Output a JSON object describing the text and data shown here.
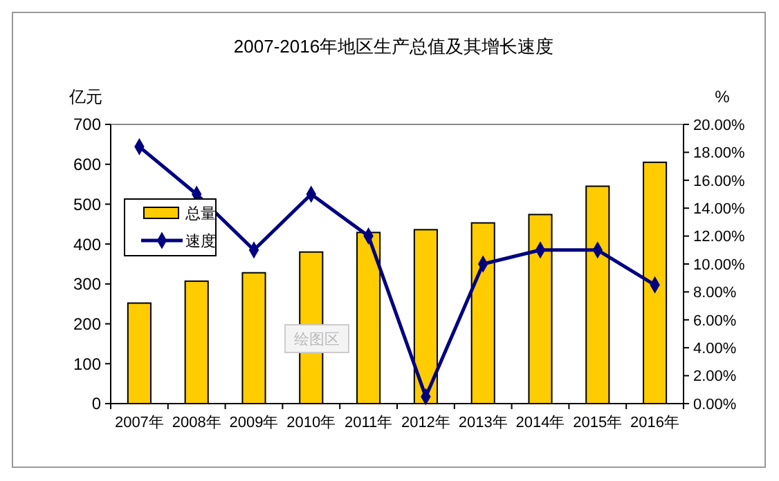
{
  "chart_data": {
    "type": "bar",
    "title": "2007-2016年地区生产总值及其增长速度",
    "ylabel": "亿元",
    "y2label": "%",
    "categories": [
      "2007年",
      "2008年",
      "2009年",
      "2010年",
      "2011年",
      "2012年",
      "2013年",
      "2014年",
      "2015年",
      "2016年"
    ],
    "series": [
      {
        "name": "总量",
        "color": "#ffcc00",
        "values": [
          252,
          307,
          328,
          380,
          429,
          436,
          453,
          474,
          545,
          605
        ]
      },
      {
        "name": "速度",
        "type": "line",
        "axis": "y2",
        "color": "#000080",
        "marker": "diamond",
        "values": [
          18.4,
          15,
          11,
          15,
          12,
          0.5,
          10,
          11,
          11,
          8.5
        ]
      }
    ],
    "ylim": [
      0,
      700
    ],
    "yticks": [
      0,
      100,
      200,
      300,
      400,
      500,
      600,
      700
    ],
    "y2lim": [
      0,
      20
    ],
    "y2ticks": [
      {
        "value": 0,
        "label": "0.00%"
      },
      {
        "value": 2,
        "label": "2.00%"
      },
      {
        "value": 4,
        "label": "4.00%"
      },
      {
        "value": 6,
        "label": "6.00%"
      },
      {
        "value": 8,
        "label": "8.00%"
      },
      {
        "value": 10,
        "label": "10.00%"
      },
      {
        "value": 12,
        "label": "12.00%"
      },
      {
        "value": 14,
        "label": "14.00%"
      },
      {
        "value": 16,
        "label": "16.00%"
      },
      {
        "value": 18,
        "label": "18.00%"
      },
      {
        "value": 20,
        "label": "20.00%"
      }
    ],
    "legend": "left",
    "annotations": [
      "绘图区"
    ]
  }
}
